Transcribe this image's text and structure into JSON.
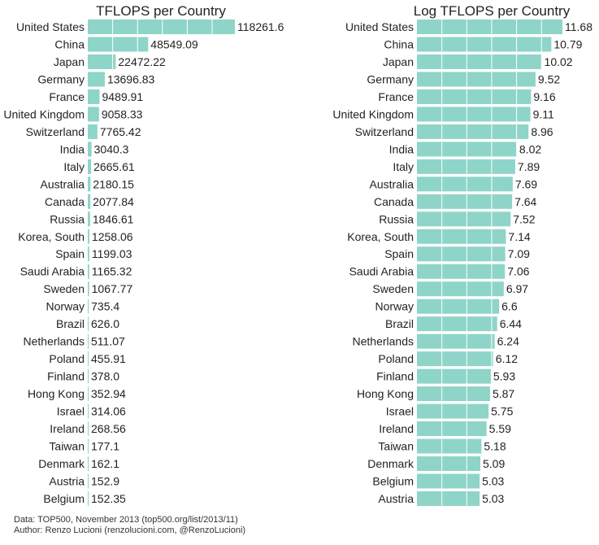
{
  "chart_data": [
    {
      "type": "bar",
      "orientation": "horizontal",
      "title": "TFLOPS per Country",
      "xlim": [
        0,
        118261.6
      ],
      "grid": true,
      "grid_step": 20000,
      "bar_color": "#8fd4c8",
      "categories": [
        "United States",
        "China",
        "Japan",
        "Germany",
        "France",
        "United Kingdom",
        "Switzerland",
        "India",
        "Italy",
        "Australia",
        "Canada",
        "Russia",
        "Korea, South",
        "Spain",
        "Saudi Arabia",
        "Sweden",
        "Norway",
        "Brazil",
        "Netherlands",
        "Poland",
        "Finland",
        "Hong Kong",
        "Israel",
        "Ireland",
        "Taiwan",
        "Denmark",
        "Austria",
        "Belgium"
      ],
      "values": [
        118261.6,
        48549.09,
        22472.22,
        13696.83,
        9489.91,
        9058.33,
        7765.42,
        3040.3,
        2665.61,
        2180.15,
        2077.84,
        1846.61,
        1258.06,
        1199.03,
        1165.32,
        1067.77,
        735.4,
        626.0,
        511.07,
        455.91,
        378.0,
        352.94,
        314.06,
        268.56,
        177.1,
        162.1,
        152.9,
        152.35
      ],
      "value_labels": [
        "118261.6",
        "48549.09",
        "22472.22",
        "13696.83",
        "9489.91",
        "9058.33",
        "7765.42",
        "3040.3",
        "2665.61",
        "2180.15",
        "2077.84",
        "1846.61",
        "1258.06",
        "1199.03",
        "1165.32",
        "1067.77",
        "735.4",
        "626.0",
        "511.07",
        "455.91",
        "378.0",
        "352.94",
        "314.06",
        "268.56",
        "177.1",
        "162.1",
        "152.9",
        "152.35"
      ]
    },
    {
      "type": "bar",
      "orientation": "horizontal",
      "title": "Log TFLOPS per Country",
      "xlim": [
        0,
        11.68
      ],
      "grid": true,
      "grid_step": 2,
      "bar_color": "#8fd4c8",
      "categories": [
        "United States",
        "China",
        "Japan",
        "Germany",
        "France",
        "United Kingdom",
        "Switzerland",
        "India",
        "Italy",
        "Australia",
        "Canada",
        "Russia",
        "Korea, South",
        "Spain",
        "Saudi Arabia",
        "Sweden",
        "Norway",
        "Brazil",
        "Netherlands",
        "Poland",
        "Finland",
        "Hong Kong",
        "Israel",
        "Ireland",
        "Taiwan",
        "Denmark",
        "Belgium",
        "Austria"
      ],
      "values": [
        11.68,
        10.79,
        10.02,
        9.52,
        9.16,
        9.11,
        8.96,
        8.02,
        7.89,
        7.69,
        7.64,
        7.52,
        7.14,
        7.09,
        7.06,
        6.97,
        6.6,
        6.44,
        6.24,
        6.12,
        5.93,
        5.87,
        5.75,
        5.59,
        5.18,
        5.09,
        5.03,
        5.03
      ],
      "value_labels": [
        "11.68",
        "10.79",
        "10.02",
        "9.52",
        "9.16",
        "9.11",
        "8.96",
        "8.02",
        "7.89",
        "7.69",
        "7.64",
        "7.52",
        "7.14",
        "7.09",
        "7.06",
        "6.97",
        "6.6",
        "6.44",
        "6.24",
        "6.12",
        "5.93",
        "5.87",
        "5.75",
        "5.59",
        "5.18",
        "5.09",
        "5.03",
        "5.03"
      ]
    }
  ],
  "footer": {
    "source": "Data: TOP500, November 2013 (top500.org/list/2013/11)",
    "author": "Author: Renzo Lucioni (renzolucioni.com, @RenzoLucioni)"
  }
}
